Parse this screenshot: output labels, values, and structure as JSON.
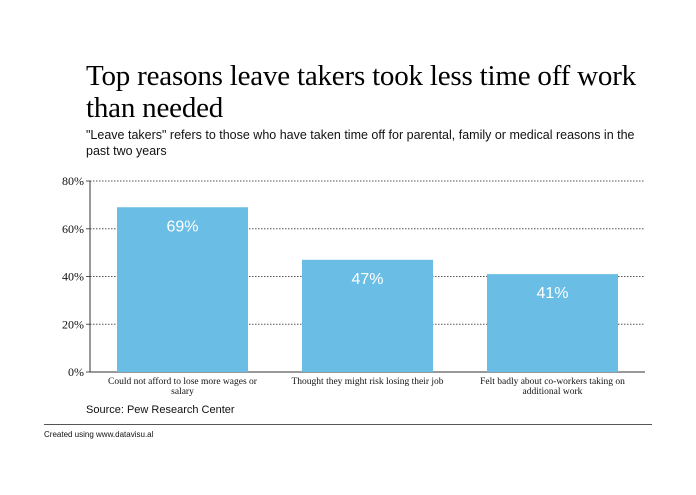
{
  "title": "Top reasons leave takers took less time off work than needed",
  "subtitle": "\"Leave takers\" refers to those who have taken time off for parental, family or medical reasons in the past two years",
  "source": "Source: Pew Research Center",
  "credit": "Created using www.datavisu.al",
  "colors": {
    "bar": "#6ABDE4",
    "bar_label": "#ffffff",
    "grid": "#555555"
  },
  "chart_data": {
    "type": "bar",
    "title": "Top reasons leave takers took less time off work than needed",
    "subtitle": "\"Leave takers\" refers to those who have taken time off for parental, family or medical reasons in the past two years",
    "categories": [
      "Could not afford to lose more wages or salary",
      "Thought they might risk losing their job",
      "Felt badly about co-workers taking on additional work"
    ],
    "values": [
      69,
      47,
      41
    ],
    "data_labels": [
      "69%",
      "47%",
      "41%"
    ],
    "yticks": [
      "0%",
      "20%",
      "40%",
      "60%",
      "80%"
    ],
    "ytick_values": [
      0,
      20,
      40,
      60,
      80
    ],
    "ylim": [
      0,
      80
    ],
    "grid": true,
    "xlabel": "",
    "ylabel": ""
  }
}
